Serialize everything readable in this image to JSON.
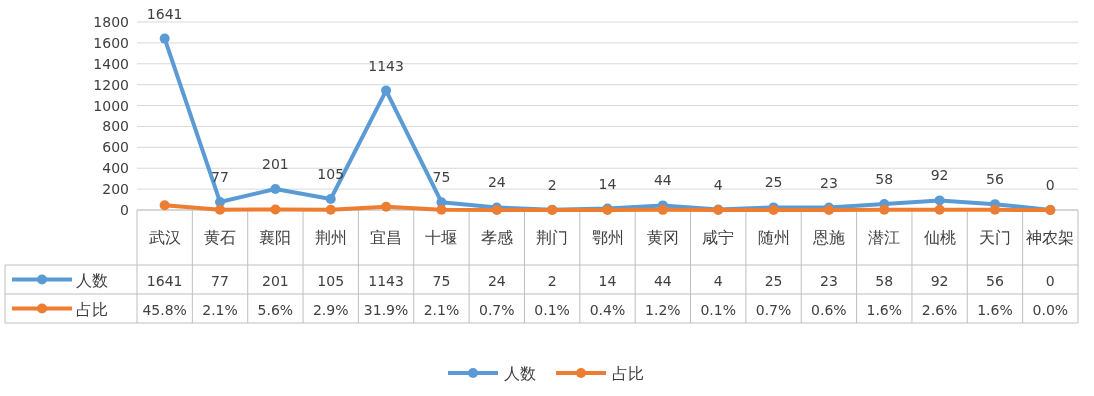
{
  "chart_data": {
    "type": "line",
    "categories": [
      "武汉",
      "黄石",
      "襄阳",
      "荆州",
      "宜昌",
      "十堰",
      "孝感",
      "荆门",
      "鄂州",
      "黄冈",
      "咸宁",
      "随州",
      "恩施",
      "潜江",
      "仙桃",
      "天门",
      "神农架"
    ],
    "series": [
      {
        "name": "人数",
        "color": "#5b9bd5",
        "values": [
          1641,
          77,
          201,
          105,
          1143,
          75,
          24,
          2,
          14,
          44,
          4,
          25,
          23,
          58,
          92,
          56,
          0
        ],
        "value_labels": [
          "1641",
          "77",
          "201",
          "105",
          "1143",
          "75",
          "24",
          "2",
          "14",
          "44",
          "4",
          "25",
          "23",
          "58",
          "92",
          "56",
          "0"
        ]
      },
      {
        "name": "占比",
        "color": "#ed7d31",
        "values": [
          45.8,
          2.1,
          5.6,
          2.9,
          31.9,
          2.1,
          0.7,
          0.1,
          0.4,
          1.2,
          0.1,
          0.7,
          0.6,
          1.6,
          2.6,
          1.6,
          0.0
        ],
        "value_labels": [
          "45.8%",
          "2.1%",
          "5.6%",
          "2.9%",
          "31.9%",
          "2.1%",
          "0.7%",
          "0.1%",
          "0.4%",
          "1.2%",
          "0.1%",
          "0.7%",
          "0.6%",
          "1.6%",
          "2.6%",
          "1.6%",
          "0.0%"
        ]
      }
    ],
    "ylim": [
      0,
      1800
    ],
    "yticks": [
      0,
      200,
      400,
      600,
      800,
      1000,
      1200,
      1400,
      1600,
      1800
    ],
    "grid": "y",
    "legend": "bottom",
    "marker": "circle",
    "line_style": "solid",
    "data_labels": true
  }
}
